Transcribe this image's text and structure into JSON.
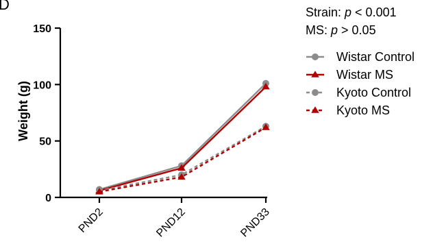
{
  "panel_label": "D",
  "stats": [
    {
      "label": "Strain: ",
      "symbol": "p",
      "rest": " < 0.001"
    },
    {
      "label": "MS: ",
      "symbol": "p",
      "rest": " > 0.05"
    }
  ],
  "colors": {
    "grey": "#8c8c8c",
    "red": "#b00000",
    "axis": "#000000"
  },
  "chart_data": {
    "type": "line",
    "title": "",
    "xlabel": "",
    "ylabel": "Weight (g)",
    "categories": [
      "PND2",
      "PND12",
      "PND33"
    ],
    "ylim": [
      0,
      150
    ],
    "yticks": [
      "0",
      "50",
      "100",
      "150"
    ],
    "legend_position": "top-right",
    "grid": false,
    "series": [
      {
        "name": "Wistar Control",
        "values": [
          7,
          28,
          101
        ],
        "color": "#8c8c8c",
        "marker": "circle",
        "dash": "solid"
      },
      {
        "name": "Wistar MS",
        "values": [
          6,
          26,
          98
        ],
        "color": "#b00000",
        "marker": "triangle",
        "dash": "solid"
      },
      {
        "name": "Kyoto Control",
        "values": [
          6,
          20,
          63
        ],
        "color": "#8c8c8c",
        "marker": "circle",
        "dash": "dashed"
      },
      {
        "name": "Kyoto MS",
        "values": [
          5,
          18,
          62
        ],
        "color": "#b00000",
        "marker": "triangle",
        "dash": "dashed"
      }
    ]
  }
}
